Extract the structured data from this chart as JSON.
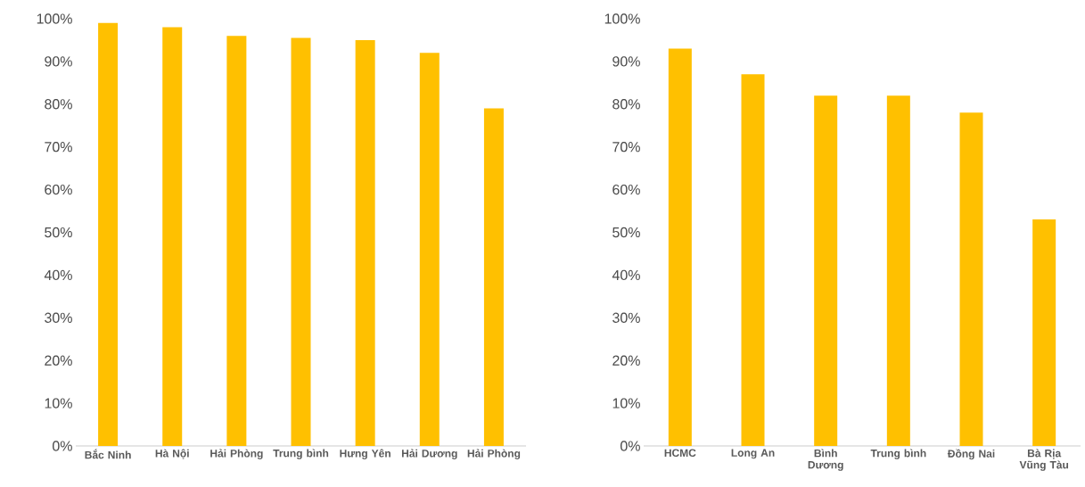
{
  "chart_data": [
    {
      "type": "bar",
      "categories": [
        "Bắc Ninh",
        "Hà Nội",
        "Hải Phòng",
        "Trung bình",
        "Hưng Yên",
        "Hải Dương",
        "Hải Phòng"
      ],
      "values": [
        99,
        98,
        96,
        95.5,
        95,
        92,
        79
      ],
      "color": "#ffc000",
      "ylim": [
        0,
        100
      ],
      "yticks": [
        {
          "value": 0,
          "label": "0%"
        },
        {
          "value": 10,
          "label": "10%"
        },
        {
          "value": 20,
          "label": "20%"
        },
        {
          "value": 30,
          "label": "30%"
        },
        {
          "value": 40,
          "label": "40%"
        },
        {
          "value": 50,
          "label": "50%"
        },
        {
          "value": 60,
          "label": "60%"
        },
        {
          "value": 70,
          "label": "70%"
        },
        {
          "value": 80,
          "label": "80%"
        },
        {
          "value": 90,
          "label": "90%"
        },
        {
          "value": 100,
          "label": "100%"
        }
      ]
    },
    {
      "type": "bar",
      "categories": [
        "HCMC",
        "Long An",
        "Bình Dương",
        "Trung bình",
        "Đồng Nai",
        "Bà Rịa Vũng Tàu"
      ],
      "values": [
        93,
        87,
        82,
        82,
        78,
        53
      ],
      "color": "#ffc000",
      "ylim": [
        0,
        100
      ],
      "yticks": [
        {
          "value": 0,
          "label": "0%"
        },
        {
          "value": 10,
          "label": "10%"
        },
        {
          "value": 20,
          "label": "20%"
        },
        {
          "value": 30,
          "label": "30%"
        },
        {
          "value": 40,
          "label": "40%"
        },
        {
          "value": 50,
          "label": "50%"
        },
        {
          "value": 60,
          "label": "60%"
        },
        {
          "value": 70,
          "label": "70%"
        },
        {
          "value": 80,
          "label": "80%"
        },
        {
          "value": 90,
          "label": "90%"
        },
        {
          "value": 100,
          "label": "100%"
        }
      ]
    }
  ]
}
